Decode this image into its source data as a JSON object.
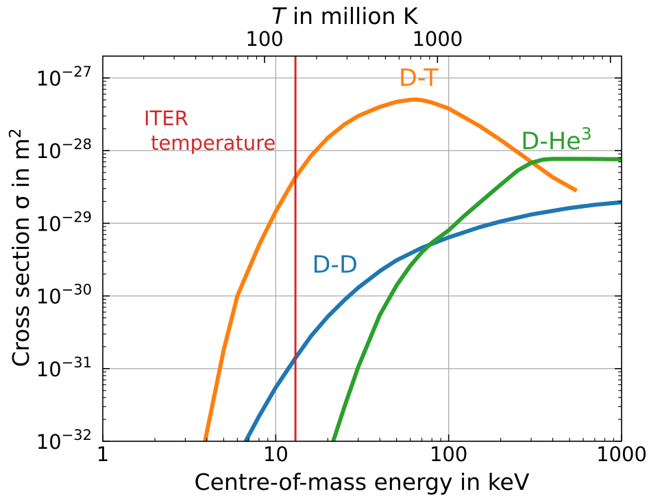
{
  "chart_data": {
    "type": "line",
    "title": "",
    "xlabel": "Centre-of-mass energy in keV",
    "ylabel_main": "Cross section σ in m",
    "ylabel_sup": "2",
    "top_xlabel_italic": "T",
    "top_xlabel_rest": " in million K",
    "xscale": "log",
    "yscale": "log",
    "xlim": [
      1,
      1000
    ],
    "ylim": [
      1e-32,
      2e-27
    ],
    "grid": true,
    "legend": "none",
    "x_ticks": [
      {
        "value": 1,
        "label": "1"
      },
      {
        "value": 10,
        "label": "10"
      },
      {
        "value": 100,
        "label": "100"
      },
      {
        "value": 1000,
        "label": "1000"
      }
    ],
    "y_ticks": [
      {
        "value": 1e-32,
        "base": "10",
        "exp": "−32"
      },
      {
        "value": 1e-31,
        "base": "10",
        "exp": "−31"
      },
      {
        "value": 1e-30,
        "base": "10",
        "exp": "−30"
      },
      {
        "value": 1e-29,
        "base": "10",
        "exp": "−29"
      },
      {
        "value": 1e-28,
        "base": "10",
        "exp": "−28"
      },
      {
        "value": 1e-27,
        "base": "10",
        "exp": "−27"
      }
    ],
    "top_ticks": [
      {
        "energy_keV": 8.62,
        "label": "100"
      },
      {
        "energy_keV": 86.2,
        "label": "1000"
      }
    ],
    "iter_line": {
      "energy_keV": 13,
      "color": "#d62728",
      "label_line1": "ITER",
      "label_line2": "temperature"
    },
    "series": [
      {
        "name": "D-T",
        "color": "#ff7f0e",
        "points": [
          [
            3.9,
            1e-32
          ],
          [
            5,
            1.8e-31
          ],
          [
            6,
            1e-30
          ],
          [
            8,
            5e-30
          ],
          [
            10,
            1.45e-29
          ],
          [
            13,
            4.3e-29
          ],
          [
            16,
            8.5e-29
          ],
          [
            20,
            1.5e-28
          ],
          [
            25,
            2.3e-28
          ],
          [
            30,
            3e-28
          ],
          [
            40,
            4e-28
          ],
          [
            50,
            4.7e-28
          ],
          [
            60,
            5e-28
          ],
          [
            65,
            5.05e-28
          ],
          [
            70,
            4.95e-28
          ],
          [
            80,
            4.6e-28
          ],
          [
            100,
            3.8e-28
          ],
          [
            150,
            2.2e-28
          ],
          [
            200,
            1.4e-28
          ],
          [
            300,
            7e-29
          ],
          [
            400,
            4.3e-29
          ],
          [
            550,
            2.8e-29
          ]
        ]
      },
      {
        "name": "D-D",
        "color": "#1f77b4",
        "points": [
          [
            6.7,
            1e-32
          ],
          [
            8,
            2.2e-32
          ],
          [
            10,
            5.5e-32
          ],
          [
            13,
            1.4e-31
          ],
          [
            16,
            2.8e-31
          ],
          [
            20,
            5.2e-31
          ],
          [
            25,
            8.8e-31
          ],
          [
            30,
            1.3e-30
          ],
          [
            40,
            2.2e-30
          ],
          [
            50,
            3.1e-30
          ],
          [
            70,
            4.6e-30
          ],
          [
            100,
            6.4e-30
          ],
          [
            150,
            8.8e-30
          ],
          [
            200,
            1.06e-29
          ],
          [
            300,
            1.32e-29
          ],
          [
            500,
            1.62e-29
          ],
          [
            700,
            1.8e-29
          ],
          [
            1000,
            1.95e-29
          ]
        ]
      },
      {
        "name": "D-He",
        "name_sup": "3",
        "color": "#2ca02c",
        "points": [
          [
            21.5,
            1e-32
          ],
          [
            25,
            3e-32
          ],
          [
            30,
            1.05e-31
          ],
          [
            40,
            5.5e-31
          ],
          [
            50,
            1.4e-30
          ],
          [
            60,
            2.6e-30
          ],
          [
            70,
            4e-30
          ],
          [
            80,
            5.4e-30
          ],
          [
            100,
            8e-30
          ],
          [
            120,
            1.2e-29
          ],
          [
            150,
            1.9e-29
          ],
          [
            200,
            3.4e-29
          ],
          [
            250,
            5.3e-29
          ],
          [
            300,
            6.8e-29
          ],
          [
            350,
            7.5e-29
          ],
          [
            400,
            7.7e-29
          ],
          [
            600,
            7.7e-29
          ],
          [
            1000,
            7.6e-29
          ]
        ]
      }
    ],
    "series_labels": [
      {
        "text": "D-T",
        "sup": "",
        "energy_keV": 67,
        "sigma": 7.8e-28,
        "color": "#ff7f0e"
      },
      {
        "text": "D-D",
        "sup": "",
        "energy_keV": 22,
        "sigma": 2.1e-30,
        "color": "#1f77b4"
      },
      {
        "text": "D-He",
        "sup": "3",
        "energy_keV": 420,
        "sigma": 1.05e-28,
        "color": "#2ca02c"
      }
    ]
  }
}
